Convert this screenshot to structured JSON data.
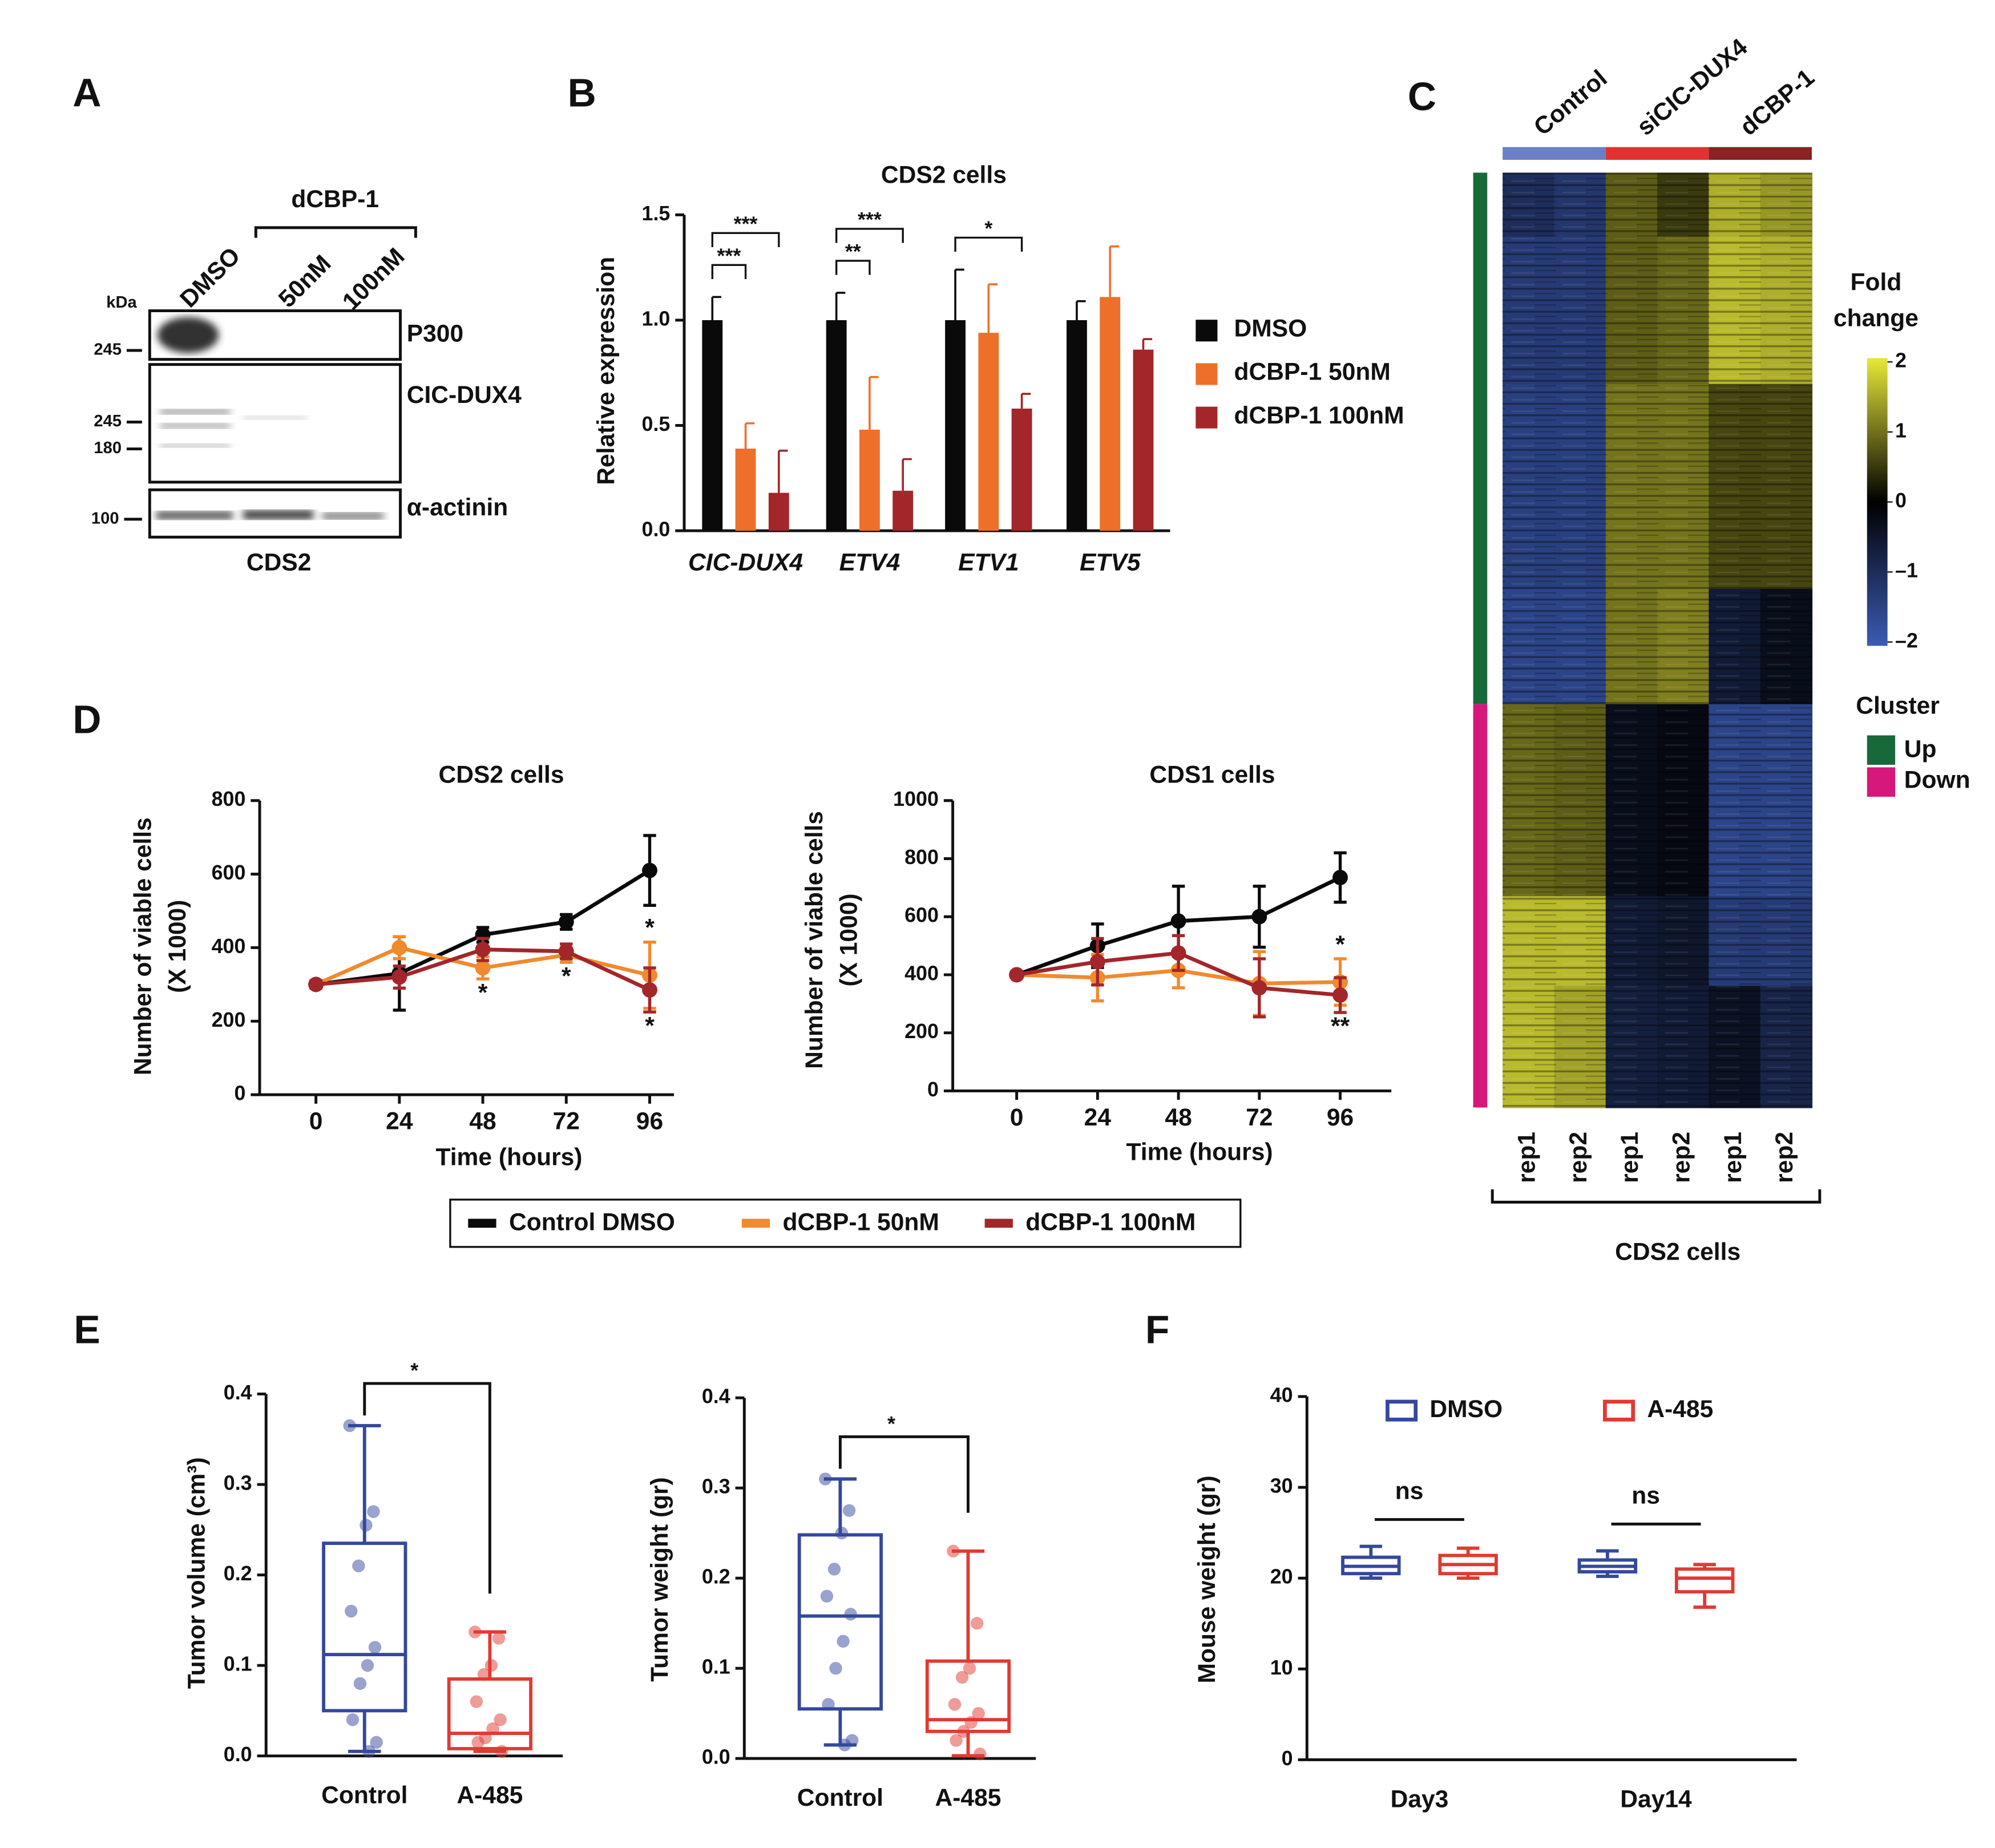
{
  "panels": [
    "A",
    "B",
    "C",
    "D",
    "E",
    "F"
  ],
  "blot": {
    "lane_group": "dCBP-1",
    "lanes": [
      "DMSO",
      "50nM",
      "100nM"
    ],
    "unit": "kDa",
    "markers": [
      "245",
      "245",
      "180",
      "100"
    ],
    "proteins": [
      "P300",
      "CIC-DUX4",
      "α-actinin"
    ],
    "cell_line": "CDS2"
  },
  "heatmap": {
    "groups": [
      {
        "name": "Control",
        "color": "#6b7fc6"
      },
      {
        "name": "siCIC-DUX4",
        "color": "#e2322f"
      },
      {
        "name": "dCBP-1",
        "color": "#8b2223"
      }
    ],
    "columns": [
      "rep1",
      "rep2",
      "rep1",
      "rep2",
      "rep1",
      "rep2"
    ],
    "caption": "CDS2 cells",
    "scale_title": [
      "Fold",
      "change"
    ],
    "scale_ticks": [
      2,
      1,
      0,
      {
        "value": -1,
        "label": "–1"
      },
      {
        "value": -2,
        "label": "–2"
      }
    ],
    "scale_colors": [
      "#3b5bb5",
      "#000000",
      "#e8e83a"
    ],
    "cluster_title": "Cluster",
    "clusters": [
      {
        "name": "Up",
        "color": "#17693a",
        "blocks": [
          {
            "rows": 50,
            "values": [
              -1,
              -1.2,
              0.8,
              0.5,
              1.5,
              1.3
            ]
          },
          {
            "rows": 115,
            "values": [
              -1.3,
              -1.3,
              0.8,
              0.9,
              1.6,
              1.5
            ]
          },
          {
            "rows": 160,
            "values": [
              -1.4,
              -1.4,
              1,
              1,
              0.6,
              0.6
            ]
          },
          {
            "rows": 90,
            "values": [
              -1.5,
              -1.5,
              1,
              1.1,
              -0.6,
              -0.3
            ]
          }
        ]
      },
      {
        "name": "Down",
        "color": "#d6177b",
        "blocks": [
          {
            "rows": 150,
            "values": [
              0.9,
              0.8,
              -0.3,
              -0.2,
              -1.5,
              -1.5
            ]
          },
          {
            "rows": 70,
            "values": [
              1.6,
              1.6,
              -0.6,
              -0.5,
              -1.3,
              -1.3
            ]
          },
          {
            "rows": 95,
            "values": [
              1.6,
              1.4,
              -0.7,
              -0.6,
              -0.4,
              -0.8
            ]
          }
        ]
      }
    ]
  },
  "chart_data": [
    {
      "type": "bar",
      "title": "CDS2 cells",
      "ylabel": "Relative expression",
      "categories": [
        "CIC-DUX4",
        "ETV4",
        "ETV1",
        "ETV5"
      ],
      "ylim": [
        0,
        1.5
      ],
      "yticks": [
        {
          "value": 0,
          "label": "0.0"
        },
        0.5,
        {
          "value": 1,
          "label": "1.0"
        },
        1.5
      ],
      "series": [
        {
          "name": "DMSO",
          "color": "#0a0a0a",
          "values": [
            1,
            1,
            1,
            1
          ],
          "errors": [
            0.11,
            0.13,
            0.24,
            0.09
          ]
        },
        {
          "name": "dCBP-1 50nM",
          "color": "#ee6f2a",
          "values": [
            0.39,
            0.48,
            0.94,
            1.11
          ],
          "errors": [
            0.12,
            0.25,
            0.23,
            0.24
          ]
        },
        {
          "name": "dCBP-1 100nM",
          "color": "#a3262a",
          "values": [
            0.18,
            0.19,
            0.58,
            0.86
          ],
          "errors": [
            0.2,
            0.15,
            0.07,
            0.05
          ]
        }
      ],
      "annotations": [
        {
          "label": "***",
          "category": 0,
          "series": [
            0,
            1
          ]
        },
        {
          "label": "***",
          "category": 0,
          "series": [
            0,
            2
          ]
        },
        {
          "label": "**",
          "category": 1,
          "series": [
            0,
            1
          ]
        },
        {
          "label": "***",
          "category": 1,
          "series": [
            0,
            2
          ]
        },
        {
          "label": "*",
          "category": 2,
          "series": [
            0,
            2
          ]
        }
      ]
    },
    {
      "type": "line",
      "title": "CDS2 cells",
      "xlabel": "Time (hours)",
      "ylabel": [
        "Number of viable cells",
        "(X 1000)"
      ],
      "x": [
        0,
        24,
        48,
        72,
        96
      ],
      "xticks": [
        0,
        24,
        48,
        72,
        96
      ],
      "ylim": [
        0,
        800
      ],
      "yticks": [
        0,
        200,
        400,
        600,
        800
      ],
      "series": [
        {
          "name": "Control DMSO",
          "color": "#0a0a0a",
          "values": [
            300,
            330,
            435,
            470,
            610
          ],
          "errors": [
            10,
            100,
            20,
            20,
            95
          ]
        },
        {
          "name": "dCBP-1 50nM",
          "color": "#f08a2e",
          "values": [
            300,
            400,
            345,
            380,
            325
          ],
          "errors": [
            10,
            30,
            30,
            20,
            90
          ]
        },
        {
          "name": "dCBP-1 100nM",
          "color": "#a3262a",
          "values": [
            300,
            320,
            395,
            390,
            285
          ],
          "errors": [
            10,
            30,
            30,
            20,
            60
          ]
        }
      ],
      "annotations": [
        {
          "label": "*",
          "series": 1,
          "index": 2,
          "place": "below"
        },
        {
          "label": "*",
          "series": 1,
          "index": 3,
          "place": "below"
        },
        {
          "label": "*",
          "series": 1,
          "index": 4,
          "place": "above"
        },
        {
          "label": "*",
          "series": 2,
          "index": 4,
          "place": "below"
        }
      ]
    },
    {
      "type": "line",
      "title": "CDS1 cells",
      "xlabel": "Time (hours)",
      "ylabel": [
        "Number of viable cells",
        "(X 1000)"
      ],
      "x": [
        0,
        24,
        48,
        72,
        96
      ],
      "xticks": [
        0,
        24,
        48,
        72,
        96
      ],
      "ylim": [
        0,
        1000
      ],
      "yticks": [
        0,
        200,
        400,
        600,
        800,
        1000
      ],
      "series": [
        {
          "color": "#0a0a0a",
          "values": [
            400,
            500,
            585,
            600,
            735
          ],
          "errors": [
            10,
            75,
            120,
            105,
            85
          ]
        },
        {
          "color": "#f08a2e",
          "values": [
            400,
            390,
            415,
            370,
            375
          ],
          "errors": [
            10,
            80,
            60,
            110,
            80
          ]
        },
        {
          "color": "#a3262a",
          "values": [
            400,
            445,
            475,
            355,
            330
          ],
          "errors": [
            10,
            80,
            60,
            100,
            60
          ]
        }
      ],
      "annotations": [
        {
          "label": "*",
          "series": 1,
          "index": 4,
          "place": "above"
        },
        {
          "label": "**",
          "series": 2,
          "index": 4,
          "place": "below"
        }
      ]
    },
    {
      "type": "box",
      "ylabel": "Tumor volume (cm³)",
      "categories": [
        "Control",
        "A-485"
      ],
      "ylim": [
        0,
        0.4
      ],
      "yticks": [
        {
          "value": 0,
          "label": "0.0"
        },
        0.1,
        0.2,
        0.3,
        0.4
      ],
      "boxes": [
        {
          "color": "#34489c",
          "min": 0.005,
          "q1": 0.05,
          "median": 0.112,
          "q3": 0.235,
          "max": 0.365,
          "points": [
            0.365,
            0.27,
            0.255,
            0.21,
            0.16,
            0.12,
            0.1,
            0.08,
            0.04,
            0.015,
            0.005
          ]
        },
        {
          "color": "#e03a32",
          "min": 0.005,
          "q1": 0.008,
          "median": 0.025,
          "q3": 0.085,
          "max": 0.137,
          "points": [
            0.137,
            0.13,
            0.1,
            0.09,
            0.06,
            0.04,
            0.03,
            0.02,
            0.015,
            0.005
          ]
        }
      ],
      "annotations": [
        {
          "label": "*",
          "categories": [
            0,
            1
          ]
        }
      ]
    },
    {
      "type": "box",
      "ylabel": "Tumor weight (gr)",
      "categories": [
        "Control",
        "A-485"
      ],
      "ylim": [
        0,
        0.4
      ],
      "yticks": [
        {
          "value": 0,
          "label": "0.0"
        },
        0.1,
        0.2,
        0.3,
        0.4
      ],
      "boxes": [
        {
          "color": "#34489c",
          "min": 0.015,
          "q1": 0.055,
          "median": 0.158,
          "q3": 0.248,
          "max": 0.31,
          "points": [
            0.31,
            0.275,
            0.25,
            0.21,
            0.18,
            0.16,
            0.13,
            0.1,
            0.06,
            0.02,
            0.015
          ]
        },
        {
          "color": "#e03a32",
          "min": 0.003,
          "q1": 0.03,
          "median": 0.043,
          "q3": 0.108,
          "max": 0.23,
          "points": [
            0.23,
            0.15,
            0.1,
            0.09,
            0.06,
            0.05,
            0.04,
            0.03,
            0.02,
            0.005
          ]
        }
      ],
      "annotations": [
        {
          "label": "*",
          "categories": [
            0,
            1
          ]
        }
      ]
    },
    {
      "type": "box",
      "ylabel": "Mouse weight (gr)",
      "categories": [
        "Day3",
        "Day14"
      ],
      "ylim": [
        0,
        40
      ],
      "yticks": [
        0,
        10,
        20,
        30,
        40
      ],
      "series": [
        {
          "name": "DMSO",
          "color": "#34489c",
          "boxes": [
            {
              "min": 20,
              "q1": 20.5,
              "median": 21.3,
              "q3": 22.3,
              "max": 23.5
            },
            {
              "min": 20.2,
              "q1": 20.7,
              "median": 21.3,
              "q3": 22,
              "max": 23
            }
          ]
        },
        {
          "name": "A-485",
          "color": "#e03a32",
          "boxes": [
            {
              "min": 20,
              "q1": 20.5,
              "median": 21.5,
              "q3": 22.5,
              "max": 23.3
            },
            {
              "min": 16.8,
              "q1": 18.5,
              "median": 20,
              "q3": 21,
              "max": 21.5
            }
          ]
        }
      ],
      "annotations": [
        {
          "label": "ns",
          "category": 0
        },
        {
          "label": "ns",
          "category": 1
        }
      ]
    }
  ]
}
